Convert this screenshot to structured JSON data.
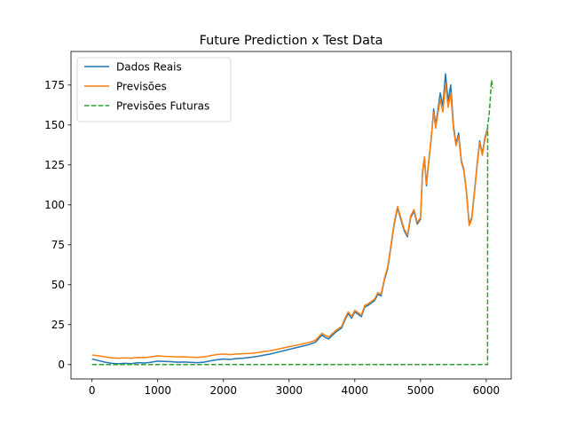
{
  "chart_data": {
    "type": "line",
    "title": "Future Prediction x Test Data",
    "xlabel": "",
    "ylabel": "",
    "xlim": [
      -320,
      6380
    ],
    "ylim": [
      -9,
      196
    ],
    "grid": false,
    "legend_position": "top-left",
    "x_ticks": [
      0,
      1000,
      2000,
      3000,
      4000,
      5000,
      6000
    ],
    "y_ticks": [
      0,
      25,
      50,
      75,
      100,
      125,
      150,
      175
    ],
    "series": [
      {
        "name": "Dados Reais",
        "color": "#1f77b4",
        "style": "solid",
        "points": [
          [
            0,
            3.5
          ],
          [
            100,
            2.5
          ],
          [
            200,
            1.5
          ],
          [
            300,
            0.8
          ],
          [
            400,
            0.5
          ],
          [
            500,
            0.8
          ],
          [
            600,
            0.6
          ],
          [
            700,
            1.2
          ],
          [
            800,
            1.0
          ],
          [
            900,
            1.5
          ],
          [
            1000,
            2.2
          ],
          [
            1100,
            2.0
          ],
          [
            1200,
            1.8
          ],
          [
            1300,
            1.5
          ],
          [
            1400,
            1.6
          ],
          [
            1500,
            1.4
          ],
          [
            1600,
            1.2
          ],
          [
            1700,
            1.5
          ],
          [
            1800,
            2.3
          ],
          [
            1900,
            3.0
          ],
          [
            2000,
            3.5
          ],
          [
            2100,
            3.2
          ],
          [
            2200,
            3.8
          ],
          [
            2300,
            4.0
          ],
          [
            2400,
            4.5
          ],
          [
            2500,
            5.0
          ],
          [
            2600,
            5.8
          ],
          [
            2700,
            6.5
          ],
          [
            2800,
            7.5
          ],
          [
            2900,
            8.5
          ],
          [
            3000,
            9.5
          ],
          [
            3100,
            10.5
          ],
          [
            3200,
            11.5
          ],
          [
            3300,
            12.5
          ],
          [
            3400,
            14.0
          ],
          [
            3500,
            18.5
          ],
          [
            3550,
            17.0
          ],
          [
            3600,
            16.0
          ],
          [
            3700,
            20.0
          ],
          [
            3800,
            23.0
          ],
          [
            3850,
            28.0
          ],
          [
            3900,
            32.0
          ],
          [
            3950,
            29.0
          ],
          [
            4000,
            33.0
          ],
          [
            4100,
            30.0
          ],
          [
            4150,
            36.0
          ],
          [
            4200,
            37.0
          ],
          [
            4300,
            40.0
          ],
          [
            4350,
            44.0
          ],
          [
            4400,
            43.0
          ],
          [
            4450,
            53.0
          ],
          [
            4500,
            60.0
          ],
          [
            4550,
            74.0
          ],
          [
            4600,
            88.0
          ],
          [
            4650,
            98.0
          ],
          [
            4700,
            91.0
          ],
          [
            4750,
            84.0
          ],
          [
            4800,
            80.0
          ],
          [
            4850,
            92.0
          ],
          [
            4900,
            96.0
          ],
          [
            4950,
            88.0
          ],
          [
            5000,
            91.0
          ],
          [
            5030,
            120.0
          ],
          [
            5060,
            129.0
          ],
          [
            5090,
            112.0
          ],
          [
            5120,
            125.0
          ],
          [
            5160,
            140.0
          ],
          [
            5200,
            160.0
          ],
          [
            5230,
            150.0
          ],
          [
            5260,
            158.0
          ],
          [
            5300,
            170.0
          ],
          [
            5340,
            162.0
          ],
          [
            5380,
            182.0
          ],
          [
            5420,
            165.0
          ],
          [
            5460,
            175.0
          ],
          [
            5500,
            150.0
          ],
          [
            5540,
            138.0
          ],
          [
            5580,
            145.0
          ],
          [
            5620,
            128.0
          ],
          [
            5660,
            122.0
          ],
          [
            5700,
            108.0
          ],
          [
            5740,
            88.0
          ],
          [
            5780,
            92.0
          ],
          [
            5820,
            108.0
          ],
          [
            5860,
            125.0
          ],
          [
            5900,
            140.0
          ],
          [
            5940,
            132.0
          ],
          [
            5980,
            142.0
          ],
          [
            6020,
            148.0
          ]
        ]
      },
      {
        "name": "Previsões",
        "color": "#ff7f0e",
        "style": "solid",
        "points": [
          [
            0,
            6.0
          ],
          [
            100,
            5.5
          ],
          [
            200,
            4.8
          ],
          [
            300,
            4.2
          ],
          [
            400,
            4.0
          ],
          [
            500,
            4.2
          ],
          [
            600,
            4.0
          ],
          [
            700,
            4.5
          ],
          [
            800,
            4.4
          ],
          [
            900,
            4.8
          ],
          [
            1000,
            5.5
          ],
          [
            1100,
            5.2
          ],
          [
            1200,
            5.0
          ],
          [
            1300,
            4.8
          ],
          [
            1400,
            4.9
          ],
          [
            1500,
            4.6
          ],
          [
            1600,
            4.5
          ],
          [
            1700,
            4.8
          ],
          [
            1800,
            5.6
          ],
          [
            1900,
            6.3
          ],
          [
            2000,
            6.6
          ],
          [
            2100,
            6.2
          ],
          [
            2200,
            6.6
          ],
          [
            2300,
            6.8
          ],
          [
            2400,
            7.0
          ],
          [
            2500,
            7.4
          ],
          [
            2600,
            8.0
          ],
          [
            2700,
            8.6
          ],
          [
            2800,
            9.4
          ],
          [
            2900,
            10.3
          ],
          [
            3000,
            11.2
          ],
          [
            3100,
            12.0
          ],
          [
            3200,
            12.9
          ],
          [
            3300,
            13.8
          ],
          [
            3400,
            15.2
          ],
          [
            3500,
            19.6
          ],
          [
            3550,
            18.2
          ],
          [
            3600,
            17.2
          ],
          [
            3700,
            21.0
          ],
          [
            3800,
            24.0
          ],
          [
            3850,
            29.0
          ],
          [
            3900,
            33.0
          ],
          [
            3950,
            30.0
          ],
          [
            4000,
            34.0
          ],
          [
            4100,
            31.0
          ],
          [
            4150,
            37.0
          ],
          [
            4200,
            38.0
          ],
          [
            4300,
            41.0
          ],
          [
            4350,
            45.0
          ],
          [
            4400,
            44.0
          ],
          [
            4450,
            54.0
          ],
          [
            4500,
            61.0
          ],
          [
            4550,
            75.0
          ],
          [
            4600,
            89.0
          ],
          [
            4650,
            99.0
          ],
          [
            4700,
            92.0
          ],
          [
            4750,
            85.0
          ],
          [
            4800,
            81.0
          ],
          [
            4850,
            93.0
          ],
          [
            4900,
            97.0
          ],
          [
            4950,
            89.0
          ],
          [
            5000,
            92.0
          ],
          [
            5030,
            121.0
          ],
          [
            5060,
            130.0
          ],
          [
            5090,
            113.0
          ],
          [
            5120,
            126.0
          ],
          [
            5160,
            141.0
          ],
          [
            5200,
            158.0
          ],
          [
            5230,
            148.0
          ],
          [
            5260,
            156.0
          ],
          [
            5300,
            166.0
          ],
          [
            5340,
            158.0
          ],
          [
            5380,
            176.0
          ],
          [
            5420,
            161.0
          ],
          [
            5460,
            170.0
          ],
          [
            5500,
            148.0
          ],
          [
            5540,
            137.0
          ],
          [
            5580,
            143.0
          ],
          [
            5620,
            127.0
          ],
          [
            5660,
            121.0
          ],
          [
            5700,
            107.0
          ],
          [
            5740,
            87.0
          ],
          [
            5780,
            91.0
          ],
          [
            5820,
            107.0
          ],
          [
            5860,
            124.0
          ],
          [
            5900,
            139.0
          ],
          [
            5940,
            131.0
          ],
          [
            5980,
            141.0
          ],
          [
            6020,
            147.0
          ]
        ]
      },
      {
        "name": "Previsões Futuras",
        "color": "#2ca02c",
        "style": "dashed",
        "points": [
          [
            0,
            0
          ],
          [
            6020,
            0
          ],
          [
            6022,
            150
          ],
          [
            6030,
            152
          ],
          [
            6040,
            155
          ],
          [
            6050,
            160
          ],
          [
            6060,
            165
          ],
          [
            6070,
            172
          ],
          [
            6080,
            178
          ],
          [
            6090,
            176
          ],
          [
            6095,
            173
          ]
        ]
      }
    ]
  }
}
